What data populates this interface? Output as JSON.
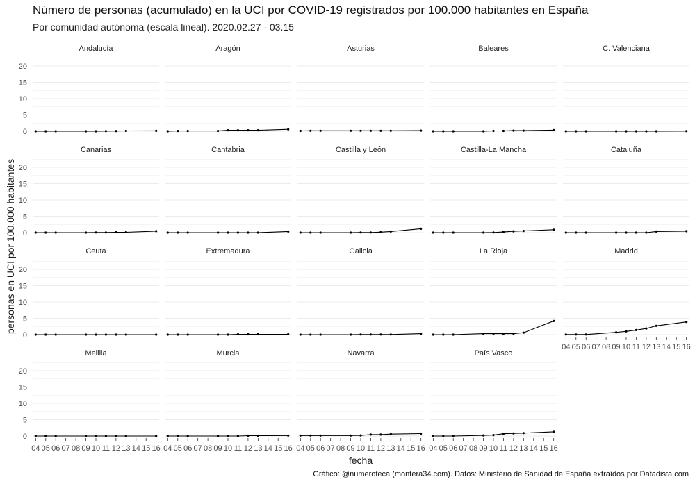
{
  "title": "Número de personas (acumulado) en la UCI por COVID-19 registrados por 100.000 habitantes en España",
  "subtitle": "Por comunidad autónoma (escala lineal). 2020.02.27 - 03.15",
  "caption": "Gráfico: @numeroteca (montera34.com). Datos: Ministerio de Sanidad de España extraídos por Datadista.com",
  "chart_data": {
    "type": "line",
    "facet": true,
    "xlabel": "fecha",
    "ylabel": "personas en UCI por 100.000 habitantes",
    "ylim": [
      0,
      22
    ],
    "yticks": [
      0,
      5,
      10,
      15,
      20
    ],
    "x_ticks": [
      "04",
      "05",
      "06",
      "07",
      "08",
      "09",
      "10",
      "11",
      "12",
      "13",
      "14",
      "15",
      "16"
    ],
    "x_positions": [
      4,
      5,
      6,
      9,
      10,
      11,
      12,
      13,
      16
    ],
    "grid": true,
    "panels": [
      {
        "name": "Andalucía",
        "values": [
          0.0,
          0.0,
          0.0,
          0.0,
          0.0,
          0.05,
          0.07,
          0.1,
          0.12
        ]
      },
      {
        "name": "Aragón",
        "values": [
          0.0,
          0.08,
          0.08,
          0.08,
          0.3,
          0.3,
          0.3,
          0.3,
          0.6
        ]
      },
      {
        "name": "Asturias",
        "values": [
          0.1,
          0.15,
          0.15,
          0.15,
          0.15,
          0.15,
          0.15,
          0.15,
          0.2
        ]
      },
      {
        "name": "Baleares",
        "values": [
          0.0,
          0.0,
          0.0,
          0.0,
          0.1,
          0.1,
          0.2,
          0.2,
          0.35
        ]
      },
      {
        "name": "C. Valenciana",
        "values": [
          0.0,
          0.0,
          0.0,
          0.0,
          0.0,
          0.0,
          0.0,
          0.0,
          0.05
        ]
      },
      {
        "name": "Canarias",
        "values": [
          0.0,
          0.0,
          0.0,
          0.0,
          0.05,
          0.05,
          0.1,
          0.1,
          0.45
        ]
      },
      {
        "name": "Cantabria",
        "values": [
          0.0,
          0.0,
          0.0,
          0.0,
          0.0,
          0.0,
          0.0,
          0.0,
          0.35
        ]
      },
      {
        "name": "Castilla y León",
        "values": [
          0.0,
          0.0,
          0.0,
          0.0,
          0.05,
          0.05,
          0.15,
          0.35,
          1.2
        ]
      },
      {
        "name": "Castilla-La Mancha",
        "values": [
          0.0,
          0.0,
          0.0,
          0.0,
          0.05,
          0.2,
          0.4,
          0.5,
          0.9
        ]
      },
      {
        "name": "Cataluña",
        "values": [
          0.0,
          0.0,
          0.0,
          0.0,
          0.0,
          0.0,
          0.0,
          0.35,
          0.45
        ]
      },
      {
        "name": "Ceuta",
        "values": [
          0.0,
          0.0,
          0.0,
          0.0,
          0.0,
          0.0,
          0.0,
          0.0,
          0.0
        ]
      },
      {
        "name": "Extremadura",
        "values": [
          0.0,
          0.0,
          0.0,
          0.0,
          0.0,
          0.1,
          0.1,
          0.1,
          0.1
        ]
      },
      {
        "name": "Galicia",
        "values": [
          0.0,
          0.0,
          0.0,
          0.0,
          0.05,
          0.05,
          0.05,
          0.05,
          0.3
        ]
      },
      {
        "name": "La Rioja",
        "values": [
          0.0,
          0.0,
          0.0,
          0.3,
          0.3,
          0.3,
          0.3,
          0.6,
          4.2
        ]
      },
      {
        "name": "Madrid",
        "values": [
          0.05,
          0.05,
          0.05,
          0.7,
          1.0,
          1.4,
          1.9,
          2.7,
          3.9
        ]
      },
      {
        "name": "Melilla",
        "values": [
          0.0,
          0.0,
          0.0,
          0.0,
          0.0,
          0.0,
          0.0,
          0.0,
          0.0
        ]
      },
      {
        "name": "Murcia",
        "values": [
          0.0,
          0.0,
          0.0,
          0.0,
          0.0,
          0.0,
          0.1,
          0.1,
          0.15
        ]
      },
      {
        "name": "Navarra",
        "values": [
          0.15,
          0.15,
          0.15,
          0.15,
          0.2,
          0.45,
          0.45,
          0.6,
          0.75
        ]
      },
      {
        "name": "País Vasco",
        "values": [
          0.0,
          0.0,
          0.0,
          0.2,
          0.3,
          0.7,
          0.8,
          0.9,
          1.3
        ]
      }
    ]
  },
  "colors": {
    "line": "#000000",
    "grid": "#ebebeb",
    "tick": "#4d4d4d",
    "background": "#ffffff"
  }
}
